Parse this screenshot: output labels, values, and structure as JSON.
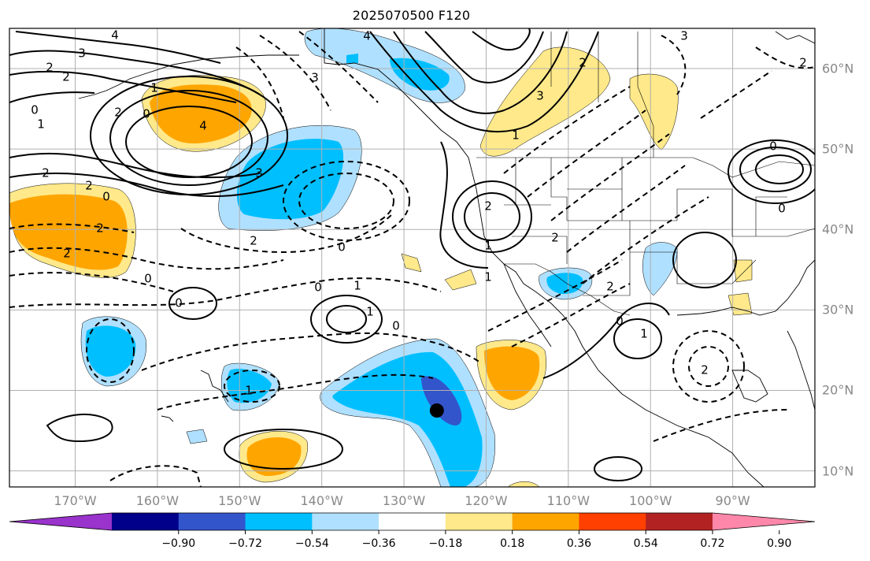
{
  "title": "2025070500 F120",
  "map": {
    "lon_labels": [
      "170°W",
      "160°W",
      "150°W",
      "140°W",
      "130°W",
      "120°W",
      "110°W",
      "100°W",
      "90°W"
    ],
    "lat_labels": [
      "60°N",
      "50°N",
      "40°N",
      "30°N",
      "20°N",
      "10°N"
    ],
    "lon_range": [
      -178,
      -80
    ],
    "lat_range": [
      8,
      65
    ],
    "contour_labels": [
      "4",
      "3",
      "2",
      "2",
      "0",
      "1",
      "4",
      "2",
      "1",
      "0",
      "2",
      "2",
      "3",
      "4",
      "3",
      "0",
      "2",
      "2",
      "0",
      "0",
      "1",
      "0",
      "1",
      "2",
      "0",
      "0",
      "1",
      "2",
      "1",
      "1",
      "3",
      "2",
      "2",
      "1",
      "0",
      "2",
      "1",
      "2",
      "0",
      "0",
      "3",
      "2"
    ],
    "storm_marker": {
      "lon": -126,
      "lat": 17.5
    },
    "colors": {
      "coast": "#000000",
      "grid": "#b0b0b0",
      "contour": "#000000"
    }
  },
  "colorbar": {
    "labels": [
      "−0.90",
      "−0.72",
      "−0.54",
      "−0.36",
      "−0.18",
      "0.18",
      "0.36",
      "0.54",
      "0.72",
      "0.90"
    ],
    "colors": [
      "#9933cc",
      "#00008b",
      "#3355cc",
      "#00bfff",
      "#b0e0ff",
      "#ffffff",
      "#ffe98a",
      "#ffa500",
      "#ff4000",
      "#b22222",
      "#ff88aa"
    ]
  }
}
